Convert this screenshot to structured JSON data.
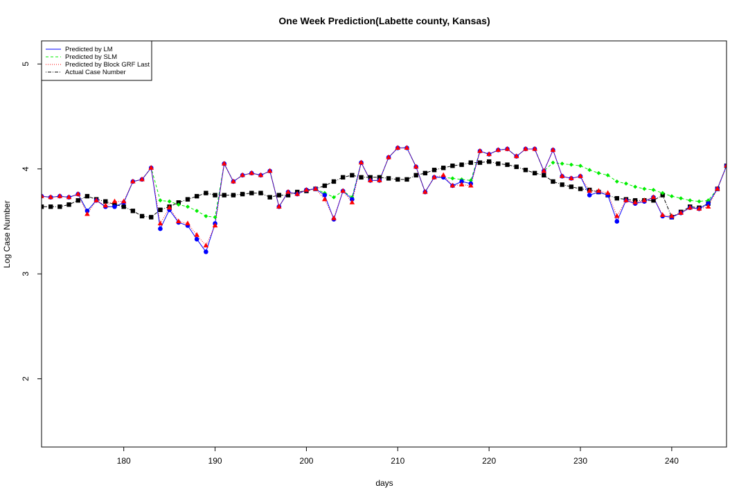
{
  "chart_data": {
    "type": "line",
    "title": "One Week Prediction(Labette county, Kansas)",
    "xlabel": "days",
    "ylabel": "Log Case Number",
    "xlim": [
      171,
      246
    ],
    "ylim": [
      1.35,
      5.22
    ],
    "x_ticks": [
      180,
      190,
      200,
      210,
      220,
      230,
      240
    ],
    "y_ticks": [
      2,
      3,
      4,
      5
    ],
    "legend_position": "top-left",
    "grid": false,
    "x": [
      171,
      172,
      173,
      174,
      175,
      176,
      177,
      178,
      179,
      180,
      181,
      182,
      183,
      184,
      185,
      186,
      187,
      188,
      189,
      190,
      191,
      192,
      193,
      194,
      195,
      196,
      197,
      198,
      199,
      200,
      201,
      202,
      203,
      204,
      205,
      206,
      207,
      208,
      209,
      210,
      211,
      212,
      213,
      214,
      215,
      216,
      217,
      218,
      219,
      220,
      221,
      222,
      223,
      224,
      225,
      226,
      227,
      228,
      229,
      230,
      231,
      232,
      233,
      234,
      235,
      236,
      237,
      238,
      239,
      240,
      241,
      242,
      243,
      244,
      245,
      246
    ],
    "series": [
      {
        "name": "Predicted by LM",
        "color": "#0000ff",
        "line_style": "solid",
        "marker": "circle",
        "values": [
          3.74,
          3.73,
          3.74,
          3.73,
          3.76,
          3.6,
          3.7,
          3.64,
          3.64,
          3.68,
          3.88,
          3.9,
          4.01,
          3.43,
          3.61,
          3.49,
          3.46,
          3.33,
          3.21,
          3.48,
          4.05,
          3.88,
          3.94,
          3.96,
          3.94,
          3.98,
          3.64,
          3.78,
          3.76,
          3.8,
          3.81,
          3.75,
          3.52,
          3.79,
          3.71,
          4.06,
          3.89,
          3.89,
          4.11,
          4.2,
          4.2,
          4.02,
          3.78,
          3.92,
          3.92,
          3.84,
          3.88,
          3.86,
          4.17,
          4.14,
          4.18,
          4.19,
          4.12,
          4.19,
          4.19,
          3.98,
          4.18,
          3.93,
          3.91,
          3.93,
          3.75,
          3.78,
          3.75,
          3.5,
          3.7,
          3.67,
          3.69,
          3.73,
          3.55,
          3.54,
          3.58,
          3.63,
          3.62,
          3.67,
          3.81,
          4.03
        ]
      },
      {
        "name": "Predicted by SLM",
        "color": "#00ee00",
        "line_style": "dashed",
        "marker": "diamond",
        "values": [
          3.74,
          3.73,
          3.74,
          3.73,
          3.76,
          3.6,
          3.7,
          3.64,
          3.64,
          3.68,
          3.88,
          3.9,
          4.01,
          3.7,
          3.69,
          3.66,
          3.64,
          3.6,
          3.55,
          3.54,
          4.05,
          3.88,
          3.94,
          3.96,
          3.94,
          3.98,
          3.64,
          3.78,
          3.76,
          3.8,
          3.81,
          3.77,
          3.73,
          3.79,
          3.73,
          4.06,
          3.89,
          3.89,
          4.11,
          4.2,
          4.2,
          4.02,
          3.78,
          3.92,
          3.92,
          3.91,
          3.9,
          3.89,
          4.17,
          4.14,
          4.18,
          4.19,
          4.12,
          4.19,
          4.19,
          3.98,
          4.06,
          4.05,
          4.04,
          4.03,
          3.99,
          3.96,
          3.94,
          3.88,
          3.86,
          3.83,
          3.81,
          3.8,
          3.77,
          3.74,
          3.72,
          3.7,
          3.69,
          3.7,
          3.81,
          4.03
        ]
      },
      {
        "name": "Predicted by Block GRF Last",
        "color": "#ff0000",
        "line_style": "dotted",
        "marker": "triangle",
        "values": [
          3.74,
          3.73,
          3.74,
          3.73,
          3.76,
          3.57,
          3.7,
          3.65,
          3.69,
          3.69,
          3.88,
          3.9,
          4.01,
          3.48,
          3.63,
          3.5,
          3.48,
          3.37,
          3.27,
          3.46,
          4.05,
          3.88,
          3.94,
          3.96,
          3.94,
          3.98,
          3.64,
          3.78,
          3.76,
          3.8,
          3.81,
          3.71,
          3.53,
          3.79,
          3.68,
          4.06,
          3.89,
          3.89,
          4.11,
          4.2,
          4.2,
          4.02,
          3.78,
          3.92,
          3.94,
          3.84,
          3.85,
          3.84,
          4.17,
          4.14,
          4.18,
          4.19,
          4.12,
          4.19,
          4.19,
          3.98,
          4.18,
          3.93,
          3.91,
          3.93,
          3.79,
          3.79,
          3.77,
          3.55,
          3.7,
          3.68,
          3.7,
          3.73,
          3.56,
          3.55,
          3.58,
          3.63,
          3.62,
          3.64,
          3.81,
          4.03
        ]
      },
      {
        "name": "Actual Case Number",
        "color": "#000000",
        "line_style": "dotdash",
        "marker": "square",
        "values": [
          3.64,
          3.64,
          3.64,
          3.66,
          3.7,
          3.74,
          3.71,
          3.69,
          3.66,
          3.64,
          3.6,
          3.55,
          3.54,
          3.61,
          3.64,
          3.68,
          3.71,
          3.74,
          3.77,
          3.75,
          3.75,
          3.75,
          3.76,
          3.77,
          3.77,
          3.73,
          3.75,
          3.75,
          3.78,
          3.79,
          3.81,
          3.84,
          3.88,
          3.92,
          3.94,
          3.92,
          3.92,
          3.92,
          3.91,
          3.9,
          3.9,
          3.94,
          3.96,
          3.99,
          4.01,
          4.03,
          4.04,
          4.06,
          4.06,
          4.07,
          4.05,
          4.04,
          4.02,
          3.99,
          3.96,
          3.94,
          3.88,
          3.85,
          3.83,
          3.81,
          3.8,
          3.78,
          3.75,
          3.72,
          3.71,
          3.7,
          3.7,
          3.7,
          3.75,
          3.54,
          3.59,
          3.64,
          3.63,
          3.67,
          3.81,
          4.03
        ]
      }
    ]
  }
}
